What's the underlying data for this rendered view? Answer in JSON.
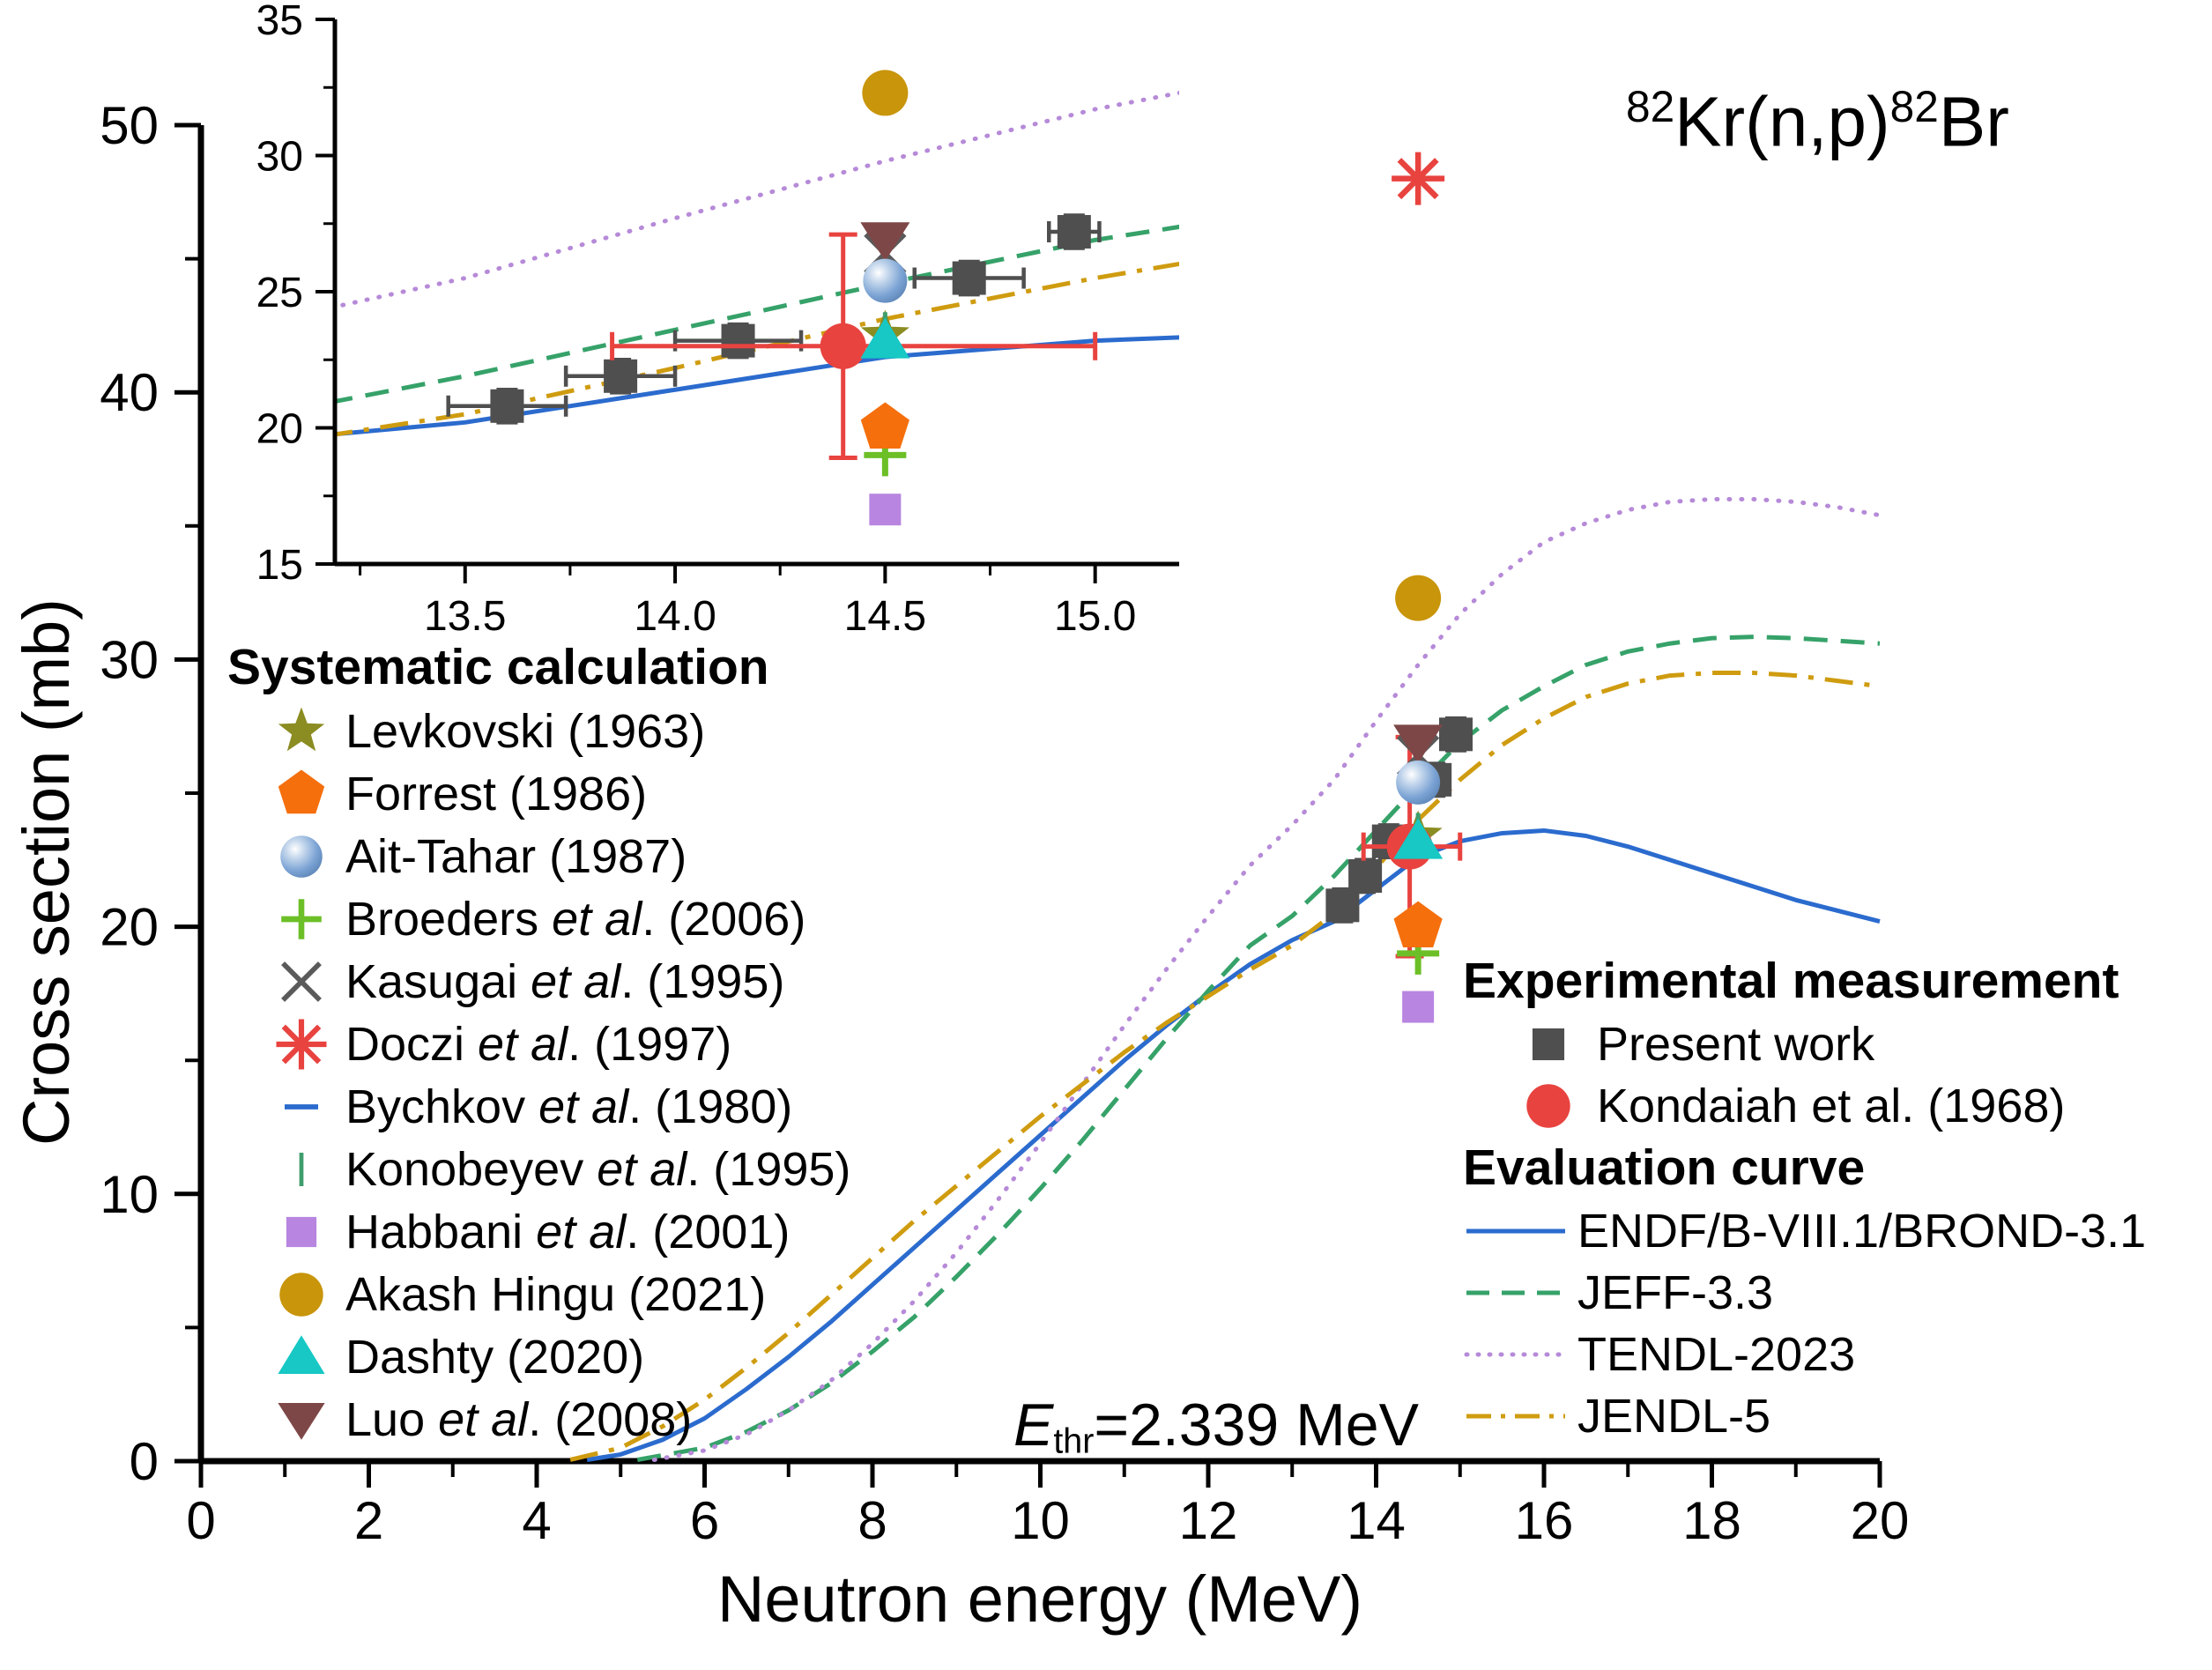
{
  "chart_data": {
    "type": "line",
    "title": {
      "sup1": "82",
      "mid": "Kr(n,p)",
      "sup2": "82",
      "end": "Br"
    },
    "annotation": {
      "e": "E",
      "sub": "thr",
      "rest": "=2.339 MeV"
    },
    "xlabel": "Neutron energy (MeV)",
    "ylabel": "Cross section (mb)",
    "main": {
      "xlim": [
        0,
        20
      ],
      "ylim": [
        0,
        50
      ],
      "x_ticks": [
        0,
        2,
        4,
        6,
        8,
        10,
        12,
        14,
        16,
        18,
        20
      ],
      "x_tick_labels": [
        "0",
        "2",
        "4",
        "6",
        "8",
        "10",
        "12",
        "14",
        "16",
        "18",
        "20"
      ],
      "y_ticks": [
        0,
        10,
        20,
        30,
        40,
        50
      ],
      "y_tick_labels": [
        "0",
        "10",
        "20",
        "30",
        "40",
        "50"
      ],
      "grid": false
    },
    "inset": {
      "xlim": [
        13.19,
        15.2
      ],
      "ylim": [
        15,
        35
      ],
      "x_ticks": [
        13.5,
        14.0,
        14.5,
        15.0
      ],
      "x_tick_labels": [
        "13.5",
        "14.0",
        "14.5",
        "15.0"
      ],
      "y_ticks": [
        15,
        20,
        25,
        30,
        35
      ],
      "y_tick_labels": [
        "15",
        "20",
        "25",
        "30",
        "35"
      ],
      "grid": false
    },
    "eval_curves": [
      {
        "name": "ENDF/B-VIII.1/BROND-3.1",
        "color": "#2b6bce",
        "style": "solid",
        "points": [
          [
            4.6,
            0.05
          ],
          [
            5,
            0.25
          ],
          [
            5.5,
            0.8
          ],
          [
            6,
            1.6
          ],
          [
            6.5,
            2.7
          ],
          [
            7,
            3.9
          ],
          [
            7.5,
            5.2
          ],
          [
            8,
            6.6
          ],
          [
            8.5,
            8.0
          ],
          [
            9,
            9.4
          ],
          [
            9.5,
            10.8
          ],
          [
            10,
            12.2
          ],
          [
            10.5,
            13.6
          ],
          [
            11,
            15.0
          ],
          [
            11.5,
            16.3
          ],
          [
            12,
            17.5
          ],
          [
            12.5,
            18.6
          ],
          [
            13,
            19.5
          ],
          [
            13.5,
            20.2
          ],
          [
            14,
            21.4
          ],
          [
            14.5,
            22.6
          ],
          [
            15,
            23.2
          ],
          [
            15.5,
            23.5
          ],
          [
            16,
            23.6
          ],
          [
            16.5,
            23.4
          ],
          [
            17,
            23.0
          ],
          [
            17.5,
            22.5
          ],
          [
            18,
            22.0
          ],
          [
            18.5,
            21.5
          ],
          [
            19,
            21.0
          ],
          [
            19.5,
            20.6
          ],
          [
            20,
            20.2
          ]
        ]
      },
      {
        "name": "JEFF-3.3",
        "color": "#36a269",
        "style": "dashed",
        "points": [
          [
            5.2,
            0.05
          ],
          [
            6,
            0.5
          ],
          [
            6.5,
            1.1
          ],
          [
            7,
            1.9
          ],
          [
            7.5,
            2.9
          ],
          [
            8,
            4.1
          ],
          [
            8.5,
            5.4
          ],
          [
            9,
            6.9
          ],
          [
            9.5,
            8.5
          ],
          [
            10,
            10.2
          ],
          [
            10.5,
            12.0
          ],
          [
            11,
            13.9
          ],
          [
            11.5,
            15.8
          ],
          [
            12,
            17.6
          ],
          [
            12.5,
            19.3
          ],
          [
            13,
            20.4
          ],
          [
            13.5,
            21.9
          ],
          [
            14,
            23.6
          ],
          [
            14.5,
            25.3
          ],
          [
            15,
            26.9
          ],
          [
            15.5,
            28.1
          ],
          [
            16,
            29.0
          ],
          [
            16.5,
            29.8
          ],
          [
            17,
            30.3
          ],
          [
            17.5,
            30.6
          ],
          [
            18,
            30.8
          ],
          [
            18.5,
            30.85
          ],
          [
            19,
            30.8
          ],
          [
            19.5,
            30.7
          ],
          [
            20,
            30.6
          ]
        ]
      },
      {
        "name": "TENDL-2023",
        "color": "#b68ad8",
        "style": "dotted",
        "points": [
          [
            5.4,
            0.05
          ],
          [
            6,
            0.4
          ],
          [
            6.5,
            1.0
          ],
          [
            7,
            1.9
          ],
          [
            7.5,
            3.0
          ],
          [
            8,
            4.4
          ],
          [
            8.5,
            6.0
          ],
          [
            9,
            7.8
          ],
          [
            9.5,
            9.8
          ],
          [
            10,
            11.9
          ],
          [
            10.5,
            14.1
          ],
          [
            11,
            16.3
          ],
          [
            11.5,
            18.4
          ],
          [
            12,
            20.4
          ],
          [
            12.5,
            22.3
          ],
          [
            13,
            23.8
          ],
          [
            13.5,
            25.5
          ],
          [
            14,
            27.7
          ],
          [
            14.5,
            29.8
          ],
          [
            15,
            31.7
          ],
          [
            15.5,
            33.2
          ],
          [
            16,
            34.4
          ],
          [
            16.5,
            35.1
          ],
          [
            17,
            35.6
          ],
          [
            17.5,
            35.9
          ],
          [
            18,
            36.0
          ],
          [
            18.5,
            36.0
          ],
          [
            19,
            35.9
          ],
          [
            19.5,
            35.7
          ],
          [
            20,
            35.4
          ]
        ]
      },
      {
        "name": "JENDL-5",
        "color": "#cf9c10",
        "style": "dashdot",
        "points": [
          [
            4.4,
            0.05
          ],
          [
            5,
            0.5
          ],
          [
            5.5,
            1.3
          ],
          [
            6,
            2.3
          ],
          [
            6.5,
            3.5
          ],
          [
            7,
            4.8
          ],
          [
            7.5,
            6.2
          ],
          [
            8,
            7.6
          ],
          [
            8.5,
            9.0
          ],
          [
            9,
            10.3
          ],
          [
            9.5,
            11.6
          ],
          [
            10,
            12.9
          ],
          [
            10.5,
            14.1
          ],
          [
            11,
            15.3
          ],
          [
            11.5,
            16.4
          ],
          [
            12,
            17.4
          ],
          [
            12.5,
            18.4
          ],
          [
            13,
            19.3
          ],
          [
            13.5,
            20.5
          ],
          [
            14,
            22.2
          ],
          [
            14.5,
            24.0
          ],
          [
            15,
            25.5
          ],
          [
            15.5,
            26.8
          ],
          [
            16,
            27.8
          ],
          [
            16.5,
            28.6
          ],
          [
            17,
            29.1
          ],
          [
            17.5,
            29.4
          ],
          [
            18,
            29.5
          ],
          [
            18.5,
            29.5
          ],
          [
            19,
            29.4
          ],
          [
            19.5,
            29.2
          ],
          [
            20,
            29.0
          ]
        ]
      }
    ],
    "experimental": [
      {
        "name": "Present work",
        "marker": "square",
        "color": "#4f4f4f",
        "points": [
          [
            13.6,
            20.8
          ],
          [
            13.87,
            21.9
          ],
          [
            14.15,
            23.2
          ],
          [
            14.7,
            25.5
          ],
          [
            14.95,
            27.2
          ]
        ],
        "xerr": [
          0.14,
          0.13,
          0.15,
          0.13,
          0.06
        ],
        "yerr": [
          0.6,
          0.6,
          0.6,
          0.6,
          0.6
        ]
      },
      {
        "name": "Kondaiah et al. (1968)",
        "marker": "circle",
        "color": "#e8433f",
        "points": [
          [
            14.4,
            23.0
          ]
        ],
        "xerr_lo": 0.55,
        "xerr_hi": 0.6,
        "yerr": 4.1
      }
    ],
    "systematic": [
      {
        "label1": "Levkovski (1963)",
        "label2": "",
        "label3": "",
        "marker": "star",
        "color": "#8b8c21",
        "point": [
          14.5,
          23.4
        ]
      },
      {
        "label1": "Forrest (1986)",
        "label2": "",
        "label3": "",
        "marker": "pentagon",
        "color": "#f56f0d",
        "point": [
          14.5,
          20.0
        ]
      },
      {
        "label1": "Ait-Tahar (1987)",
        "label2": "",
        "label3": "",
        "marker": "sphere",
        "color": "#7aa7d6",
        "point": [
          14.5,
          25.4
        ]
      },
      {
        "label1": "Broeders ",
        "label2": "et al",
        "label3": ". (2006)",
        "marker": "plus",
        "color": "#6cbf26",
        "point": [
          14.5,
          19.0
        ]
      },
      {
        "label1": "Kasugai ",
        "label2": "et al",
        "label3": ". (1995)",
        "marker": "x",
        "color": "#5a5a5a",
        "point": [
          14.5,
          26.4
        ]
      },
      {
        "label1": "Doczi ",
        "label2": "et al",
        "label3": ". (1997)",
        "marker": "asterisk",
        "color": "#e8433f",
        "point": [
          14.5,
          48.0
        ]
      },
      {
        "label1": "Bychkov ",
        "label2": "et al",
        "label3": ". (1980)",
        "marker": "hline",
        "color": "#2b6bce",
        "point": [
          14.5,
          22.9
        ]
      },
      {
        "label1": "Konobeyev ",
        "label2": "et al",
        "label3": ". (1995)",
        "marker": "vline",
        "color": "#3f9e6e",
        "point": [
          14.5,
          23.6
        ]
      },
      {
        "label1": "Habbani ",
        "label2": "et al",
        "label3": ". (2001)",
        "marker": "fsquare",
        "color": "#b885e0",
        "point": [
          14.5,
          17.0
        ]
      },
      {
        "label1": "Akash Hingu (2021)",
        "label2": "",
        "label3": "",
        "marker": "fcircle",
        "color": "#c8950b",
        "point": [
          14.5,
          32.3
        ]
      },
      {
        "label1": "Dashty (2020)",
        "label2": "",
        "label3": "",
        "marker": "triangle",
        "color": "#17c8c4",
        "point": [
          14.5,
          23.2
        ]
      },
      {
        "label1": "Luo ",
        "label2": "et al",
        "label3": ". (2008)",
        "marker": "tridown",
        "color": "#7e4747",
        "point": [
          14.5,
          26.9
        ]
      }
    ]
  },
  "legend": {
    "systematic_header": "Systematic calculation",
    "experimental_header": "Experimental measurement",
    "evaluation_header": "Evaluation curve"
  }
}
